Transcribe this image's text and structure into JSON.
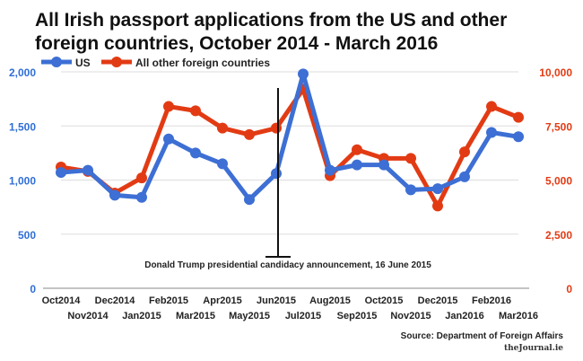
{
  "title": {
    "line1": "All Irish passport applications from the US and other",
    "line2": "foreign countries, October 2014 - March 2016"
  },
  "legend": {
    "us": "US",
    "other": "All other foreign countries"
  },
  "annotation": "Donald Trump presidential candidacy announcement, 16 June 2015",
  "source": "Source: Department of Foreign Affairs",
  "credit": "theJournal.ie",
  "colors": {
    "us": "#3d6fd4",
    "other": "#e23b14",
    "axis": "#2f6ed6",
    "grid": "#dddddd"
  },
  "chart_data": {
    "type": "line",
    "categories": [
      "Oct2014",
      "Nov2014",
      "Dec2014",
      "Jan2015",
      "Feb2015",
      "Mar2015",
      "Apr2015",
      "May2015",
      "Jun2015",
      "Jul2015",
      "Aug2015",
      "Sep2015",
      "Oct2015",
      "Nov2015",
      "Dec2015",
      "Jan2016",
      "Feb2016",
      "Mar2016"
    ],
    "series": [
      {
        "name": "US",
        "axis": "left",
        "values": [
          1070,
          1090,
          860,
          840,
          1380,
          1250,
          1150,
          820,
          1060,
          1980,
          1090,
          1140,
          1140,
          910,
          920,
          1030,
          1440,
          1400
        ]
      },
      {
        "name": "All other foreign countries",
        "axis": "right",
        "values": [
          5600,
          5400,
          4400,
          5100,
          8400,
          8200,
          7400,
          7100,
          7400,
          9200,
          5200,
          6400,
          6000,
          6000,
          3800,
          6300,
          8400,
          7900
        ]
      }
    ],
    "y_left": {
      "min": 0,
      "max": 2000,
      "ticks": [
        "0",
        "500",
        "1,000",
        "1,500",
        "2,000"
      ]
    },
    "y_right": {
      "min": 0,
      "max": 10000,
      "ticks": [
        "0",
        "2,500",
        "5,000",
        "7,500",
        "10,000"
      ]
    },
    "grid": true,
    "legend_position": "top-left",
    "annotation_category": "Jun2015"
  }
}
